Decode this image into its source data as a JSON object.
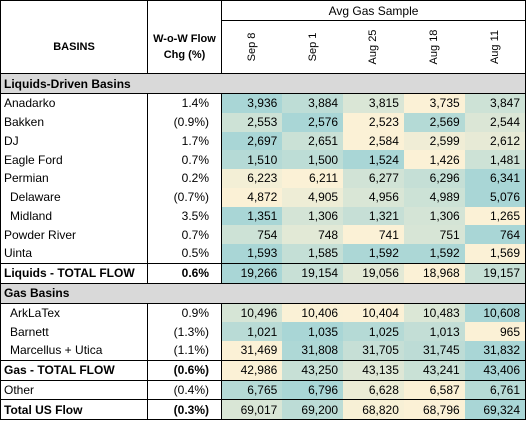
{
  "header": {
    "group_title": "Avg Gas Sample",
    "basins_label": "BASINS",
    "wow_label_line1": "W-o-W Flow",
    "wow_label_line2": "Chg (%)",
    "dates": [
      "Sep 8",
      "Sep 1",
      "Aug 25",
      "Aug 18",
      "Aug 11"
    ]
  },
  "sections": {
    "liquids": "Liquids-Driven Basins",
    "gas": "Gas Basins"
  },
  "liquids_rows": [
    {
      "name": "Anadarko",
      "wow": "1.4%",
      "values": [
        "3,936",
        "3,884",
        "3,815",
        "3,735",
        "3,847"
      ]
    },
    {
      "name": "Bakken",
      "wow": "(0.9%)",
      "values": [
        "2,553",
        "2,576",
        "2,523",
        "2,569",
        "2,544"
      ]
    },
    {
      "name": "DJ",
      "wow": "1.7%",
      "values": [
        "2,697",
        "2,651",
        "2,584",
        "2,599",
        "2,612"
      ]
    },
    {
      "name": "Eagle Ford",
      "wow": "0.7%",
      "values": [
        "1,510",
        "1,500",
        "1,524",
        "1,426",
        "1,481"
      ]
    },
    {
      "name": "Permian",
      "wow": "0.2%",
      "values": [
        "6,223",
        "6,211",
        "6,277",
        "6,296",
        "6,341"
      ]
    },
    {
      "name": "Delaware",
      "wow": "(0.7%)",
      "values": [
        "4,872",
        "4,905",
        "4,956",
        "4,989",
        "5,076"
      ]
    },
    {
      "name": "Midland",
      "wow": "3.5%",
      "values": [
        "1,351",
        "1,306",
        "1,321",
        "1,306",
        "1,265"
      ]
    },
    {
      "name": "Powder River",
      "wow": "0.7%",
      "values": [
        "754",
        "748",
        "741",
        "751",
        "764"
      ]
    },
    {
      "name": "Uinta",
      "wow": "0.5%",
      "values": [
        "1,593",
        "1,585",
        "1,592",
        "1,592",
        "1,569"
      ]
    }
  ],
  "liquids_total": {
    "name": "Liquids - TOTAL FLOW",
    "wow": "0.6%",
    "values": [
      "19,266",
      "19,154",
      "19,056",
      "18,968",
      "19,157"
    ]
  },
  "gas_rows": [
    {
      "name": "ArkLaTex",
      "wow": "0.9%",
      "values": [
        "10,496",
        "10,406",
        "10,404",
        "10,483",
        "10,608"
      ]
    },
    {
      "name": "Barnett",
      "wow": "(1.3%)",
      "values": [
        "1,021",
        "1,035",
        "1,025",
        "1,013",
        "965"
      ]
    },
    {
      "name": "Marcellus + Utica",
      "wow": "(1.1%)",
      "values": [
        "31,469",
        "31,808",
        "31,705",
        "31,745",
        "31,832"
      ]
    }
  ],
  "gas_total": {
    "name": "Gas - TOTAL FLOW",
    "wow": "(0.6%)",
    "values": [
      "42,986",
      "43,250",
      "43,135",
      "43,241",
      "43,406"
    ]
  },
  "other": {
    "name": "Other",
    "wow": "(0.4%)",
    "values": [
      "6,765",
      "6,796",
      "6,628",
      "6,587",
      "6,761"
    ]
  },
  "total_us": {
    "name": "Total US Flow",
    "wow": "(0.3%)",
    "values": [
      "69,017",
      "69,200",
      "68,820",
      "68,796",
      "69,324"
    ]
  },
  "colors": {
    "heat_high": "#a9d6d6",
    "heat_low": "#fbf1d6",
    "section_bg": "#d9d9d9"
  }
}
